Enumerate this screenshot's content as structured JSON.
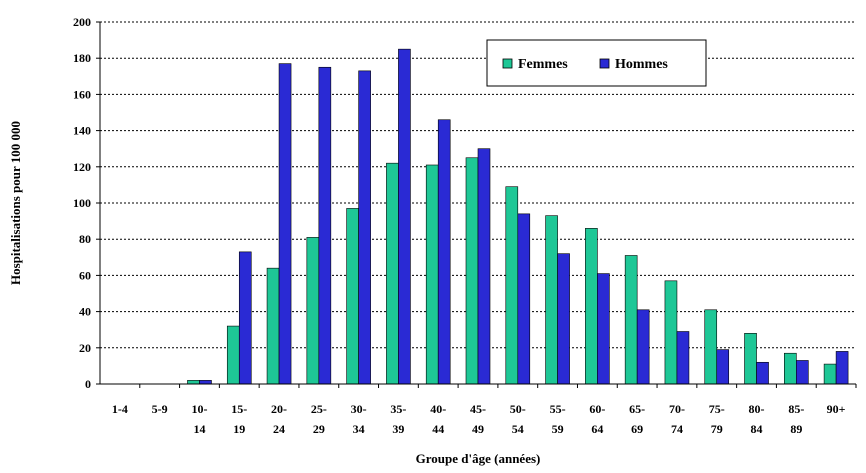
{
  "chart_data": {
    "type": "bar",
    "title": "",
    "xlabel": "Groupe d'âge (années)",
    "ylabel": "Hospitalisations pour 100 000",
    "ylim": [
      0,
      200
    ],
    "yticks": [
      "0",
      "20",
      "40",
      "60",
      "80",
      "100",
      "120",
      "140",
      "160",
      "180",
      "200"
    ],
    "grid": "horizontal dotted",
    "legend_position": "top-right",
    "categories": [
      {
        "line1": "1-4",
        "line2": ""
      },
      {
        "line1": "5-9",
        "line2": ""
      },
      {
        "line1": "10-",
        "line2": "14"
      },
      {
        "line1": "15-",
        "line2": "19"
      },
      {
        "line1": "20-",
        "line2": "24"
      },
      {
        "line1": "25-",
        "line2": "29"
      },
      {
        "line1": "30-",
        "line2": "34"
      },
      {
        "line1": "35-",
        "line2": "39"
      },
      {
        "line1": "40-",
        "line2": "44"
      },
      {
        "line1": "45-",
        "line2": "49"
      },
      {
        "line1": "50-",
        "line2": "54"
      },
      {
        "line1": "55-",
        "line2": "59"
      },
      {
        "line1": "60-",
        "line2": "64"
      },
      {
        "line1": "65-",
        "line2": "69"
      },
      {
        "line1": "70-",
        "line2": "74"
      },
      {
        "line1": "75-",
        "line2": "79"
      },
      {
        "line1": "80-",
        "line2": "84"
      },
      {
        "line1": "85-",
        "line2": "89"
      },
      {
        "line1": "90+",
        "line2": ""
      }
    ],
    "series": [
      {
        "name": "Femmes",
        "color": "#1ec796",
        "values": [
          0,
          0,
          2,
          32,
          64,
          81,
          97,
          122,
          121,
          125,
          109,
          93,
          86,
          71,
          57,
          41,
          28,
          17,
          11
        ]
      },
      {
        "name": "Hommes",
        "color": "#2a2ad4",
        "values": [
          0,
          0,
          2,
          73,
          177,
          175,
          173,
          185,
          146,
          130,
          94,
          72,
          61,
          41,
          29,
          19,
          12,
          13,
          18
        ]
      }
    ]
  }
}
